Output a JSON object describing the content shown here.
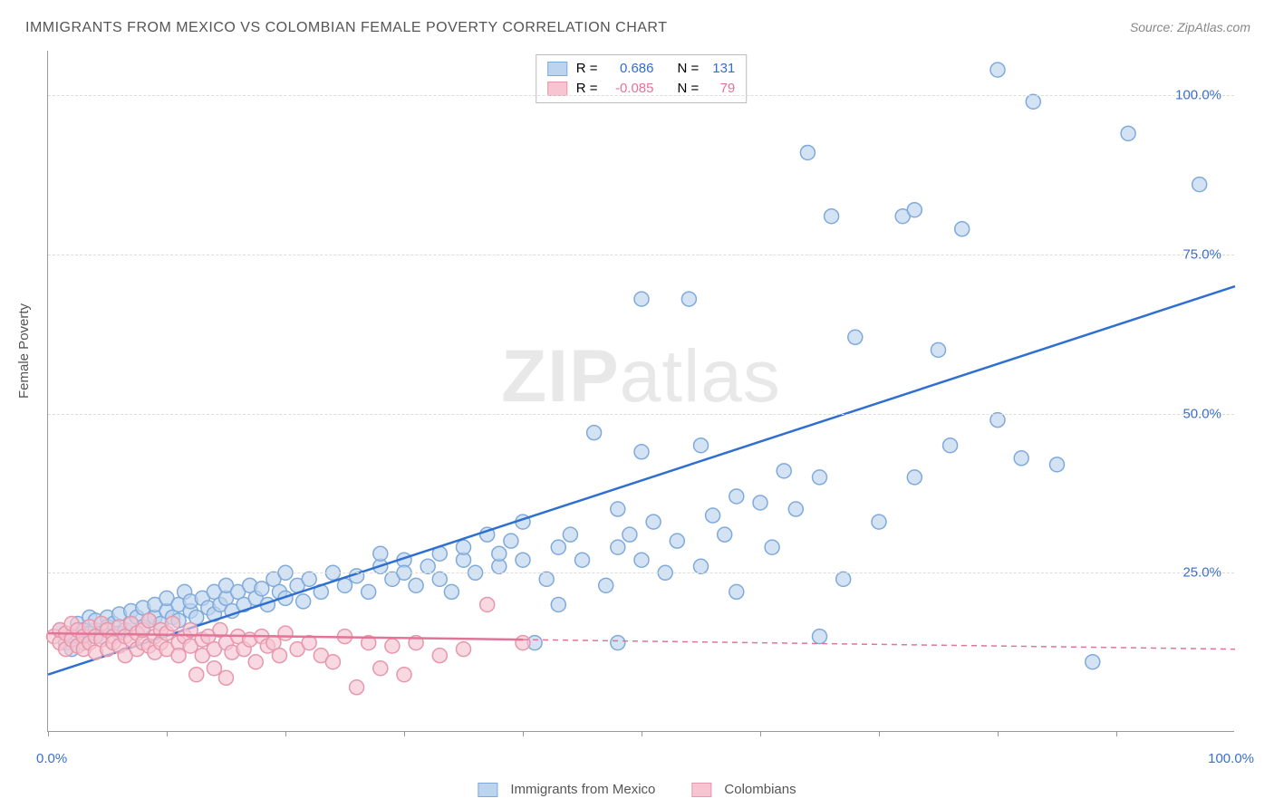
{
  "title": "IMMIGRANTS FROM MEXICO VS COLOMBIAN FEMALE POVERTY CORRELATION CHART",
  "source": "Source: ZipAtlas.com",
  "ylabel": "Female Poverty",
  "watermark_bold": "ZIP",
  "watermark_rest": "atlas",
  "chart": {
    "type": "scatter",
    "background_color": "#ffffff",
    "grid_color": "#dddddd",
    "axis_color": "#999999",
    "xlim": [
      0,
      100
    ],
    "ylim": [
      0,
      107
    ],
    "ytick_positions": [
      25,
      50,
      75,
      100
    ],
    "ytick_labels": [
      "25.0%",
      "50.0%",
      "75.0%",
      "100.0%"
    ],
    "xtick_positions": [
      0,
      10,
      20,
      30,
      40,
      50,
      60,
      70,
      80,
      90
    ],
    "xaxis_label_left": "0.0%",
    "xaxis_label_right": "100.0%",
    "axis_label_color": "#3b6fc9",
    "marker_radius": 8,
    "marker_stroke_width": 1.5,
    "line_width": 2.5,
    "series": [
      {
        "name": "Immigrants from Mexico",
        "fill_color": "#bcd4ee",
        "fill_opacity": 0.65,
        "stroke_color": "#7faadb",
        "line_color": "#2f6fd0",
        "R": "0.686",
        "N": "131",
        "trend": {
          "x1": 0,
          "y1": 9,
          "x2": 100,
          "y2": 70,
          "solid_until": 100
        },
        "points": [
          [
            1,
            16
          ],
          [
            1.5,
            14
          ],
          [
            2,
            15
          ],
          [
            2,
            13
          ],
          [
            2.5,
            17
          ],
          [
            3,
            16
          ],
          [
            3,
            14
          ],
          [
            3.5,
            15.5
          ],
          [
            3.5,
            18
          ],
          [
            4,
            16
          ],
          [
            4,
            17.5
          ],
          [
            4.5,
            15
          ],
          [
            5,
            18
          ],
          [
            5,
            16.5
          ],
          [
            5.5,
            17
          ],
          [
            6,
            15.5
          ],
          [
            6,
            18.5
          ],
          [
            6.5,
            16
          ],
          [
            7,
            17
          ],
          [
            7,
            19
          ],
          [
            7.5,
            18
          ],
          [
            8,
            16.5
          ],
          [
            8,
            19.5
          ],
          [
            8.5,
            17.5
          ],
          [
            9,
            18
          ],
          [
            9,
            20
          ],
          [
            9.5,
            17
          ],
          [
            10,
            19
          ],
          [
            10,
            21
          ],
          [
            10.5,
            18
          ],
          [
            11,
            20
          ],
          [
            11,
            17.5
          ],
          [
            11.5,
            22
          ],
          [
            12,
            19
          ],
          [
            12,
            20.5
          ],
          [
            12.5,
            18
          ],
          [
            13,
            21
          ],
          [
            13.5,
            19.5
          ],
          [
            14,
            22
          ],
          [
            14,
            18.5
          ],
          [
            14.5,
            20
          ],
          [
            15,
            21
          ],
          [
            15,
            23
          ],
          [
            15.5,
            19
          ],
          [
            16,
            22
          ],
          [
            16.5,
            20
          ],
          [
            17,
            23
          ],
          [
            17.5,
            21
          ],
          [
            18,
            22.5
          ],
          [
            18.5,
            20
          ],
          [
            19,
            24
          ],
          [
            19.5,
            22
          ],
          [
            20,
            21
          ],
          [
            20,
            25
          ],
          [
            21,
            23
          ],
          [
            21.5,
            20.5
          ],
          [
            22,
            24
          ],
          [
            23,
            22
          ],
          [
            24,
            25
          ],
          [
            25,
            23
          ],
          [
            26,
            24.5
          ],
          [
            27,
            22
          ],
          [
            28,
            26
          ],
          [
            28,
            28
          ],
          [
            29,
            24
          ],
          [
            30,
            27
          ],
          [
            30,
            25
          ],
          [
            31,
            23
          ],
          [
            32,
            26
          ],
          [
            33,
            28
          ],
          [
            33,
            24
          ],
          [
            34,
            22
          ],
          [
            35,
            27
          ],
          [
            35,
            29
          ],
          [
            36,
            25
          ],
          [
            37,
            31
          ],
          [
            38,
            26
          ],
          [
            38,
            28
          ],
          [
            39,
            30
          ],
          [
            40,
            27
          ],
          [
            40,
            33
          ],
          [
            41,
            14
          ],
          [
            42,
            24
          ],
          [
            43,
            29
          ],
          [
            43,
            20
          ],
          [
            44,
            31
          ],
          [
            45,
            27
          ],
          [
            46,
            47
          ],
          [
            47,
            23
          ],
          [
            48,
            29
          ],
          [
            48,
            14
          ],
          [
            49,
            31
          ],
          [
            50,
            44
          ],
          [
            50,
            27
          ],
          [
            51,
            33
          ],
          [
            52,
            25
          ],
          [
            53,
            30
          ],
          [
            54,
            68
          ],
          [
            55,
            26
          ],
          [
            55,
            45
          ],
          [
            56,
            34
          ],
          [
            57,
            31
          ],
          [
            58,
            37
          ],
          [
            58,
            22
          ],
          [
            60,
            36
          ],
          [
            61,
            29
          ],
          [
            62,
            41
          ],
          [
            63,
            35
          ],
          [
            64,
            91
          ],
          [
            65,
            40
          ],
          [
            65,
            15
          ],
          [
            66,
            81
          ],
          [
            67,
            24
          ],
          [
            68,
            62
          ],
          [
            70,
            33
          ],
          [
            72,
            81
          ],
          [
            73,
            82
          ],
          [
            73,
            40
          ],
          [
            75,
            60
          ],
          [
            76,
            45
          ],
          [
            77,
            79
          ],
          [
            80,
            49
          ],
          [
            80,
            104
          ],
          [
            82,
            43
          ],
          [
            83,
            99
          ],
          [
            85,
            42
          ],
          [
            88,
            11
          ],
          [
            91,
            94
          ],
          [
            97,
            86
          ],
          [
            48,
            35
          ],
          [
            50,
            68
          ]
        ]
      },
      {
        "name": "Colombians",
        "fill_color": "#f6c5d1",
        "fill_opacity": 0.65,
        "stroke_color": "#e797ac",
        "line_color": "#e27498",
        "R": "-0.085",
        "N": "79",
        "trend": {
          "x1": 0,
          "y1": 15.5,
          "x2": 100,
          "y2": 13,
          "solid_until": 40
        },
        "points": [
          [
            0.5,
            15
          ],
          [
            1,
            14
          ],
          [
            1,
            16
          ],
          [
            1.5,
            13
          ],
          [
            1.5,
            15.5
          ],
          [
            2,
            14.5
          ],
          [
            2,
            17
          ],
          [
            2.5,
            13.5
          ],
          [
            2.5,
            16
          ],
          [
            3,
            15
          ],
          [
            3,
            13
          ],
          [
            3.5,
            14
          ],
          [
            3.5,
            16.5
          ],
          [
            4,
            15
          ],
          [
            4,
            12.5
          ],
          [
            4.5,
            14.5
          ],
          [
            4.5,
            17
          ],
          [
            5,
            13
          ],
          [
            5,
            16
          ],
          [
            5.5,
            15
          ],
          [
            5.5,
            14
          ],
          [
            6,
            13.5
          ],
          [
            6,
            16.5
          ],
          [
            6.5,
            15
          ],
          [
            6.5,
            12
          ],
          [
            7,
            14.5
          ],
          [
            7,
            17
          ],
          [
            7.5,
            13
          ],
          [
            7.5,
            15.5
          ],
          [
            8,
            14
          ],
          [
            8,
            16
          ],
          [
            8.5,
            13.5
          ],
          [
            8.5,
            17.5
          ],
          [
            9,
            15
          ],
          [
            9,
            12.5
          ],
          [
            9.5,
            14
          ],
          [
            9.5,
            16
          ],
          [
            10,
            13
          ],
          [
            10,
            15.5
          ],
          [
            10.5,
            17
          ],
          [
            11,
            14
          ],
          [
            11,
            12
          ],
          [
            11.5,
            15
          ],
          [
            12,
            13.5
          ],
          [
            12,
            16
          ],
          [
            12.5,
            9
          ],
          [
            13,
            14.5
          ],
          [
            13,
            12
          ],
          [
            13.5,
            15
          ],
          [
            14,
            13
          ],
          [
            14,
            10
          ],
          [
            14.5,
            16
          ],
          [
            15,
            14
          ],
          [
            15,
            8.5
          ],
          [
            15.5,
            12.5
          ],
          [
            16,
            15
          ],
          [
            16.5,
            13
          ],
          [
            17,
            14.5
          ],
          [
            17.5,
            11
          ],
          [
            18,
            15
          ],
          [
            18.5,
            13.5
          ],
          [
            19,
            14
          ],
          [
            19.5,
            12
          ],
          [
            20,
            15.5
          ],
          [
            21,
            13
          ],
          [
            22,
            14
          ],
          [
            23,
            12
          ],
          [
            24,
            11
          ],
          [
            25,
            15
          ],
          [
            26,
            7
          ],
          [
            27,
            14
          ],
          [
            28,
            10
          ],
          [
            29,
            13.5
          ],
          [
            30,
            9
          ],
          [
            31,
            14
          ],
          [
            33,
            12
          ],
          [
            35,
            13
          ],
          [
            37,
            20
          ],
          [
            40,
            14
          ]
        ]
      }
    ]
  },
  "legend_top": {
    "r_label": "R =",
    "n_label": "N ="
  },
  "legend_bottom": {
    "s1_label": "Immigrants from Mexico",
    "s2_label": "Colombians"
  }
}
